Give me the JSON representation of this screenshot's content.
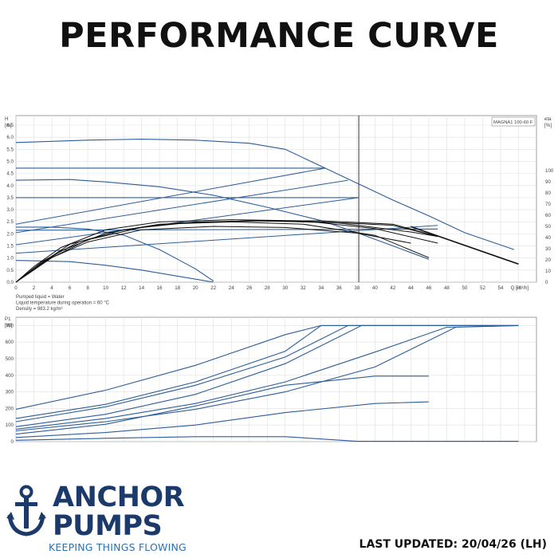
{
  "title": "PERFORMANCE CURVE",
  "chart_data": [
    {
      "type": "line",
      "name": "head_curve",
      "product_label": "MAGNA1 100-60 F",
      "y_axis_label_line1": "H",
      "y_axis_label_line2": "[m]",
      "y2_axis_label_line1": "eta",
      "y2_axis_label_line2": "[%]",
      "x_axis_label": "Q [m³/h]",
      "xlim": [
        0,
        58
      ],
      "ylim": [
        0,
        6.5
      ],
      "y2lim": [
        0,
        100
      ],
      "x_ticks": [
        0,
        2,
        4,
        6,
        8,
        10,
        12,
        14,
        16,
        18,
        20,
        22,
        24,
        26,
        28,
        30,
        32,
        34,
        36,
        38,
        40,
        42,
        44,
        46,
        48,
        50,
        52,
        54,
        56
      ],
      "y_ticks": [
        0.0,
        0.5,
        1.0,
        1.5,
        2.0,
        2.5,
        3.0,
        3.5,
        4.0,
        4.5,
        5.0,
        5.5,
        6.0,
        6.5
      ],
      "y2_ticks": [
        0,
        10,
        20,
        30,
        40,
        50,
        60,
        70,
        80,
        90,
        100
      ],
      "grid": true,
      "operating_line_x": 38.2,
      "notes": [
        "Pumped liquid = Water",
        "Liquid temperature during operation = 60 °C",
        "Density = 983.2 kg/m³"
      ],
      "head_series": [
        {
          "x": [
            0,
            8,
            14,
            20,
            26,
            30,
            34,
            38,
            42,
            46,
            50,
            55.5
          ],
          "y": [
            5.78,
            5.88,
            5.92,
            5.88,
            5.75,
            5.5,
            4.8,
            4.1,
            3.4,
            2.75,
            2.05,
            1.35
          ]
        },
        {
          "x": [
            0,
            30,
            34.5
          ],
          "y": [
            4.72,
            4.72,
            4.72
          ]
        },
        {
          "x": [
            0,
            6,
            10,
            16,
            22,
            28,
            34,
            38,
            42,
            46
          ],
          "y": [
            4.22,
            4.25,
            4.15,
            3.95,
            3.6,
            3.1,
            2.55,
            2.05,
            1.5,
            0.95
          ]
        },
        {
          "x": [
            0,
            38.2
          ],
          "y": [
            3.5,
            3.5
          ]
        },
        {
          "x": [
            0,
            4,
            8,
            12,
            16,
            18,
            20,
            22
          ],
          "y": [
            2.28,
            2.28,
            2.2,
            1.95,
            1.35,
            0.95,
            0.55,
            0.05
          ]
        },
        {
          "x": [
            0,
            6,
            10,
            14,
            18,
            22
          ],
          "y": [
            0.9,
            0.85,
            0.7,
            0.5,
            0.25,
            0.0
          ]
        },
        {
          "x": [
            0,
            47
          ],
          "y": [
            2.15,
            2.2
          ]
        }
      ],
      "system_lines": [
        {
          "x": [
            0,
            34.5
          ],
          "y": [
            2.4,
            4.72
          ]
        },
        {
          "x": [
            0,
            37
          ],
          "y": [
            2.05,
            4.22
          ]
        },
        {
          "x": [
            0,
            38.2
          ],
          "y": [
            1.55,
            3.5
          ]
        },
        {
          "x": [
            0,
            47
          ],
          "y": [
            1.2,
            2.35
          ]
        }
      ],
      "efficiency_series": [
        {
          "x": [
            0,
            2,
            5,
            10,
            16,
            24,
            32,
            40,
            46
          ],
          "y": [
            0,
            12,
            28,
            44,
            52,
            54,
            52,
            42,
            22
          ]
        },
        {
          "x": [
            0,
            2,
            5,
            10,
            16,
            24,
            32,
            40,
            47
          ],
          "y": [
            0,
            14,
            31,
            47,
            54,
            56,
            55,
            48,
            35
          ]
        },
        {
          "x": [
            0,
            3,
            6,
            12,
            18,
            26,
            34,
            42,
            47
          ],
          "y": [
            0,
            18,
            34,
            47,
            53,
            55,
            54,
            51,
            41
          ]
        },
        {
          "x": [
            0,
            3,
            7,
            12,
            18,
            26,
            34,
            42,
            47
          ],
          "y": [
            0,
            19,
            36,
            47,
            53,
            55,
            55,
            52,
            41
          ]
        },
        {
          "x": [
            0,
            4,
            8,
            14,
            20,
            28,
            36,
            44,
            47
          ],
          "y": [
            0,
            22,
            38,
            49,
            54,
            55,
            53,
            45,
            41
          ]
        },
        {
          "x": [
            0,
            4,
            8,
            14,
            22,
            30,
            38,
            44
          ],
          "y": [
            0,
            22,
            36,
            47,
            50,
            49,
            44,
            35
          ]
        }
      ]
    },
    {
      "type": "line",
      "name": "power_curve",
      "y_axis_label_line1": "P1",
      "y_axis_label_line2": "[W]",
      "xlim": [
        0,
        58
      ],
      "ylim": [
        0,
        750
      ],
      "y_ticks": [
        0,
        100,
        200,
        300,
        400,
        500,
        600,
        700
      ],
      "grid": true,
      "power_series": [
        {
          "x": [
            0,
            10,
            20,
            30,
            34,
            40,
            56
          ],
          "y": [
            195,
            310,
            460,
            645,
            700,
            700,
            700
          ]
        },
        {
          "x": [
            0,
            10,
            20,
            30,
            34,
            40,
            56
          ],
          "y": [
            140,
            225,
            360,
            545,
            700,
            700,
            700
          ]
        },
        {
          "x": [
            0,
            10,
            20,
            30,
            37,
            40,
            56
          ],
          "y": [
            120,
            210,
            340,
            510,
            700,
            700,
            700
          ]
        },
        {
          "x": [
            0,
            10,
            20,
            30,
            38.5,
            45,
            56
          ],
          "y": [
            90,
            165,
            285,
            470,
            700,
            700,
            700
          ]
        },
        {
          "x": [
            0,
            10,
            20,
            30,
            40,
            48,
            56
          ],
          "y": [
            75,
            140,
            230,
            360,
            540,
            690,
            700
          ]
        },
        {
          "x": [
            0,
            10,
            20,
            30,
            40,
            49,
            56
          ],
          "y": [
            65,
            120,
            195,
            300,
            450,
            690,
            700
          ]
        },
        {
          "x": [
            0,
            10,
            20,
            30,
            40,
            46
          ],
          "y": [
            45,
            105,
            215,
            340,
            395,
            395
          ]
        },
        {
          "x": [
            0,
            10,
            20,
            30,
            40,
            46
          ],
          "y": [
            25,
            55,
            100,
            175,
            230,
            240
          ]
        },
        {
          "x": [
            0,
            10,
            20,
            30,
            38,
            56
          ],
          "y": [
            8,
            20,
            30,
            30,
            2,
            2
          ]
        }
      ]
    }
  ],
  "branding": {
    "name_line1": "ANCHOR",
    "name_line2": "PUMPS",
    "tagline": "KEEPING THINGS FLOWING",
    "brand_color": "#1b3a6b",
    "accent_color": "#2a72b8"
  },
  "footer": {
    "last_updated": "LAST UPDATED: 20/04/26 (LH)"
  },
  "colors": {
    "curve_blue": "#2b5d99",
    "curve_black": "#111111",
    "grid": "#e0e0e0",
    "axis": "#888888",
    "label": "#444444"
  }
}
